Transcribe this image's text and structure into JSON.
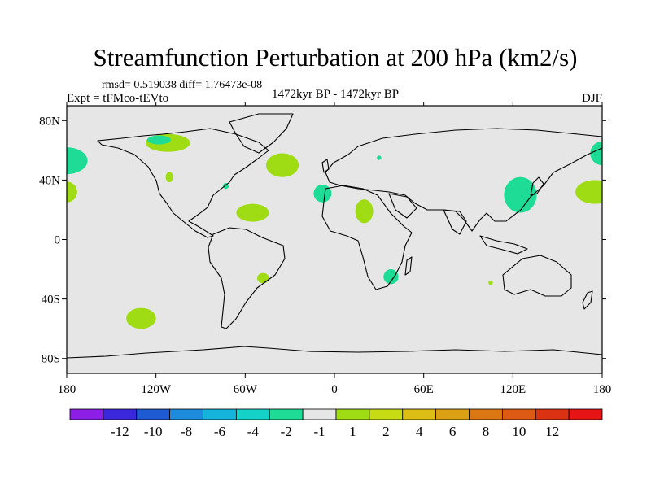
{
  "chart_data": {
    "type": "heatmap",
    "title": "Streamfunction Perturbation at 200 hPa (km2/s)",
    "stats_text": "rmsd= 0.519038 diff= 1.76473e-08",
    "experiment": "Expt = tFMco-tEVto",
    "period": "1472kyr BP - 1472kyr BP",
    "season": "DJF",
    "xlim": [
      -180,
      180
    ],
    "ylim": [
      -90,
      90
    ],
    "x_ticks": [
      {
        "value": -180,
        "label": "180"
      },
      {
        "value": -120,
        "label": "120W"
      },
      {
        "value": -60,
        "label": "60W"
      },
      {
        "value": 0,
        "label": "0"
      },
      {
        "value": 60,
        "label": "60E"
      },
      {
        "value": 120,
        "label": "120E"
      },
      {
        "value": 180,
        "label": "180"
      }
    ],
    "y_ticks": [
      {
        "value": 80,
        "label": "80N"
      },
      {
        "value": 40,
        "label": "40N"
      },
      {
        "value": 0,
        "label": "0"
      },
      {
        "value": -40,
        "label": "40S"
      },
      {
        "value": -80,
        "label": "80S"
      }
    ],
    "background_color": "#e6e6e6",
    "colorbar": {
      "colors": [
        "#8c1ee6",
        "#3c28dc",
        "#1e5ad2",
        "#1e8cdc",
        "#14b4dc",
        "#14d2c8",
        "#1edc96",
        "#e6e6e6",
        "#a0dc14",
        "#c8dc14",
        "#dcbe14",
        "#dca014",
        "#dc7814",
        "#dc5a14",
        "#dc3214",
        "#e61414"
      ],
      "labels": [
        "-12",
        "-10",
        "-8",
        "-6",
        "-4",
        "-2",
        "-1",
        "1",
        "2",
        "4",
        "6",
        "8",
        "10",
        "12"
      ]
    },
    "anomalies": [
      {
        "lon": -180,
        "lat": 53,
        "rlon": 14,
        "rlat": 9,
        "color": "#1edc96"
      },
      {
        "lon": -180,
        "lat": 32,
        "rlon": 7,
        "rlat": 7,
        "color": "#a0dc14"
      },
      {
        "lon": -112,
        "lat": 65,
        "rlon": 15,
        "rlat": 6,
        "color": "#a0dc14"
      },
      {
        "lon": -118,
        "lat": 67,
        "rlon": 8,
        "rlat": 3,
        "color": "#1edc96"
      },
      {
        "lon": -111,
        "lat": 42,
        "rlon": 2.5,
        "rlat": 3.5,
        "color": "#a0dc14"
      },
      {
        "lon": -73,
        "lat": 36,
        "rlon": 2,
        "rlat": 2,
        "color": "#1edc96"
      },
      {
        "lon": -35,
        "lat": 50,
        "rlon": 11,
        "rlat": 8,
        "color": "#a0dc14"
      },
      {
        "lon": -55,
        "lat": 18,
        "rlon": 11,
        "rlat": 6,
        "color": "#a0dc14"
      },
      {
        "lon": -8,
        "lat": 31,
        "rlon": 6,
        "rlat": 6,
        "color": "#1edc96"
      },
      {
        "lon": 20,
        "lat": 19,
        "rlon": 6,
        "rlat": 8,
        "color": "#a0dc14"
      },
      {
        "lon": 30,
        "lat": 55,
        "rlon": 1.5,
        "rlat": 1.5,
        "color": "#1edc96"
      },
      {
        "lon": 125,
        "lat": 30,
        "rlon": 11,
        "rlat": 12,
        "color": "#1edc96"
      },
      {
        "lon": 180,
        "lat": 58,
        "rlon": 8,
        "rlat": 8,
        "color": "#1edc96"
      },
      {
        "lon": 175,
        "lat": 32,
        "rlon": 13,
        "rlat": 8,
        "color": "#a0dc14"
      },
      {
        "lon": -48,
        "lat": -26,
        "rlon": 4,
        "rlat": 3.5,
        "color": "#a0dc14"
      },
      {
        "lon": 38,
        "lat": -25,
        "rlon": 5,
        "rlat": 5,
        "color": "#1edc96"
      },
      {
        "lon": 105,
        "lat": -29,
        "rlon": 1.5,
        "rlat": 1.5,
        "color": "#a0dc14"
      },
      {
        "lon": -130,
        "lat": -53,
        "rlon": 10,
        "rlat": 7,
        "color": "#a0dc14"
      }
    ]
  }
}
